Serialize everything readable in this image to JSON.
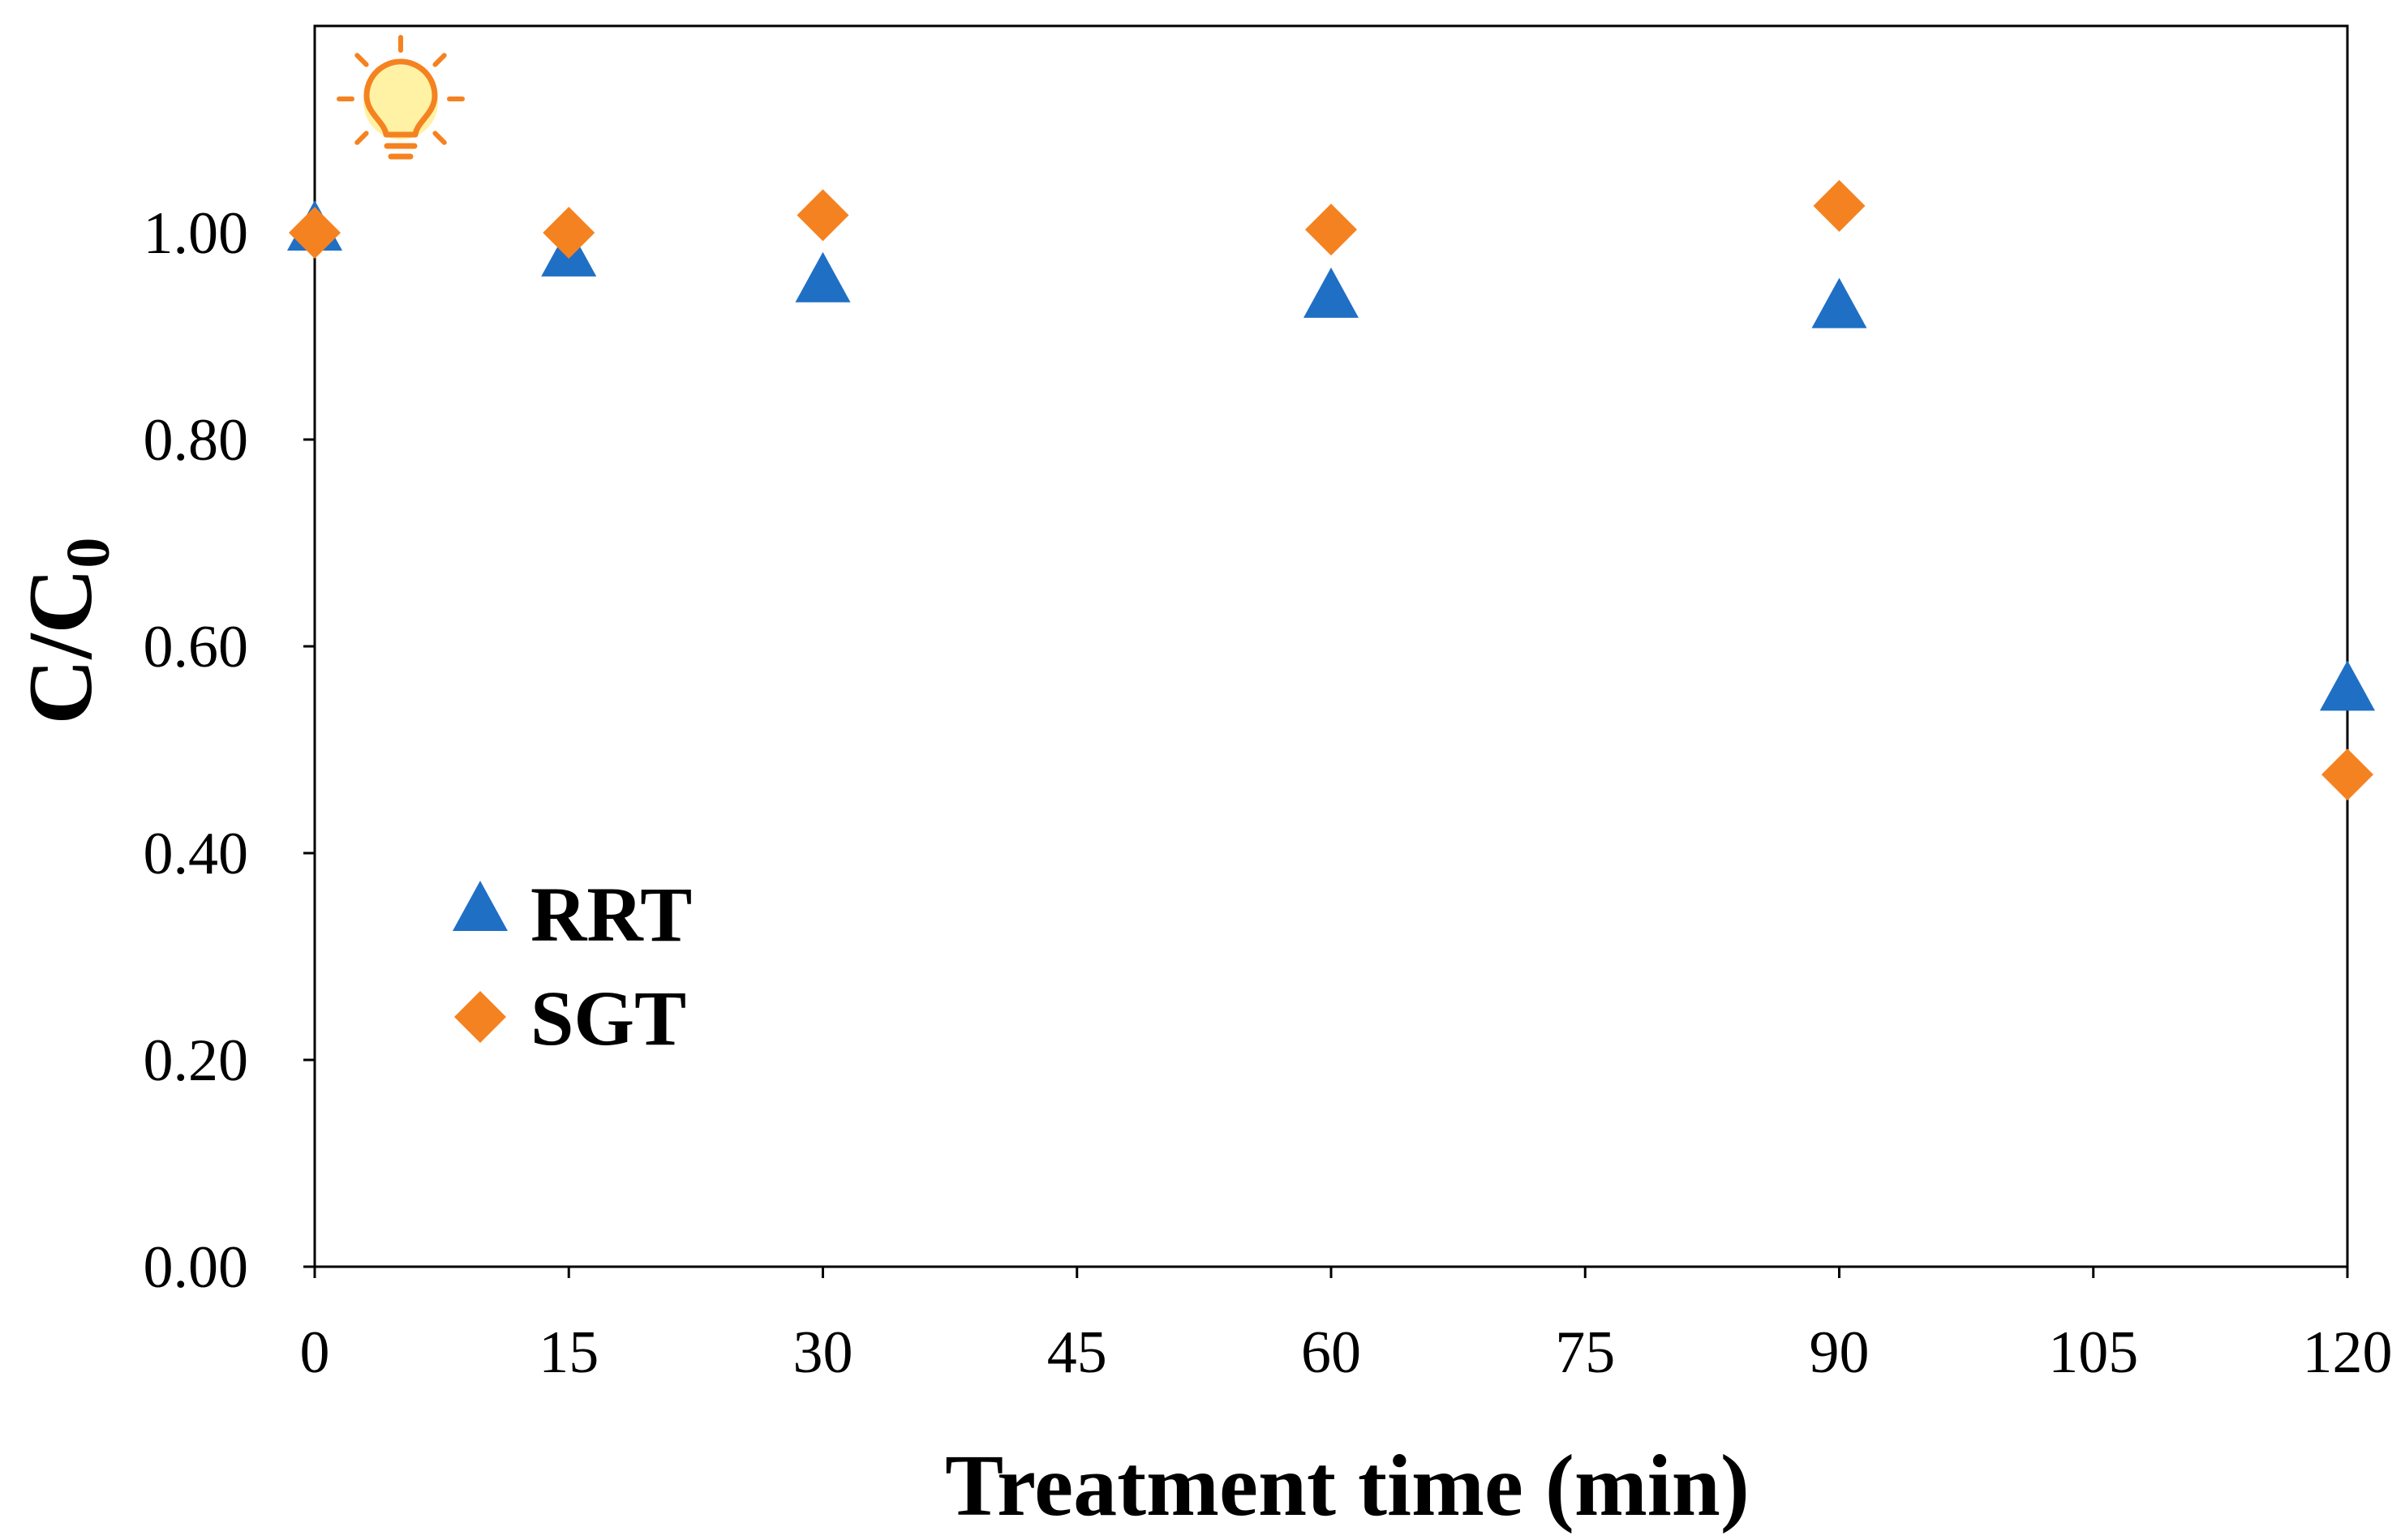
{
  "chart_data": {
    "type": "scatter",
    "title": "",
    "xlabel": "Treatment time (min)",
    "ylabel": "C/C",
    "ylabel_subscript": "0",
    "xlim": [
      0,
      120
    ],
    "ylim": [
      0,
      1.2
    ],
    "xticks": [
      0,
      15,
      30,
      45,
      60,
      75,
      90,
      105,
      120
    ],
    "xtick_labels": [
      "0",
      "15",
      "30",
      "45",
      "60",
      "75",
      "90",
      "105",
      "120"
    ],
    "yticks": [
      0,
      0.2,
      0.4,
      0.6,
      0.8,
      1.0
    ],
    "ytick_labels": [
      "0.00",
      "0.20",
      "0.40",
      "0.60",
      "0.80",
      "1.00"
    ],
    "grid": false,
    "legend_position": "lower-left",
    "icon": "lightbulb-icon",
    "series": [
      {
        "name": "RRT",
        "marker": "triangle",
        "color": "#1F6FC5",
        "x": [
          0,
          15,
          30,
          60,
          90,
          120
        ],
        "y": [
          1.0,
          0.975,
          0.95,
          0.935,
          0.925,
          0.555
        ]
      },
      {
        "name": "SGT",
        "marker": "diamond",
        "color": "#F58220",
        "x": [
          0,
          15,
          30,
          60,
          90,
          120
        ],
        "y": [
          1.0,
          1.0,
          1.017,
          1.003,
          1.026,
          0.476
        ]
      }
    ]
  }
}
